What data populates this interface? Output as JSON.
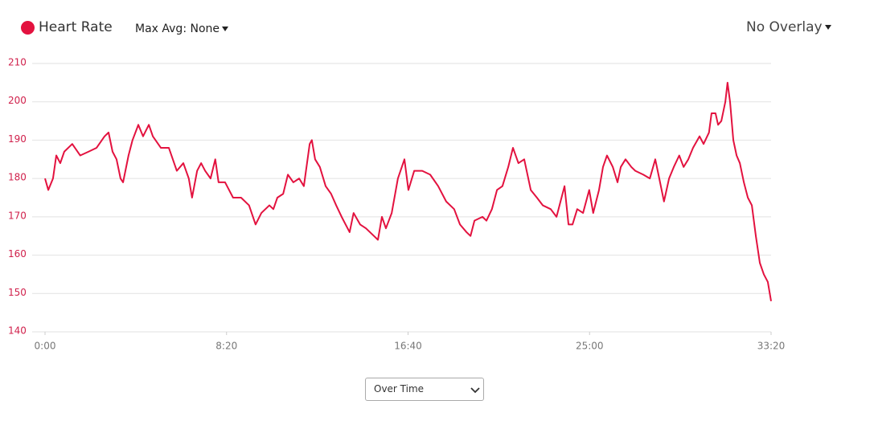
{
  "controls": {
    "max_avg": "Max Avg: None",
    "overlay": "No Overlay",
    "view": "Over Time"
  },
  "chart_data": {
    "type": "line",
    "xlim": [
      0,
      2000
    ],
    "ylim": [
      140,
      210
    ],
    "xticks": [
      {
        "value": 0,
        "label": "0:00"
      },
      {
        "value": 500,
        "label": "8:20"
      },
      {
        "value": 1000,
        "label": "16:40"
      },
      {
        "value": 1500,
        "label": "25:00"
      },
      {
        "value": 2000,
        "label": "33:20"
      }
    ],
    "yticks": [
      140,
      150,
      160,
      170,
      180,
      190,
      200,
      210
    ],
    "grid": true,
    "x": [
      0,
      9,
      22,
      31,
      42,
      53,
      75,
      97,
      120,
      142,
      164,
      175,
      186,
      197,
      208,
      215,
      230,
      241,
      257,
      270,
      286,
      297,
      319,
      341,
      363,
      381,
      396,
      405,
      419,
      430,
      441,
      456,
      469,
      478,
      496,
      518,
      540,
      562,
      580,
      596,
      618,
      629,
      640,
      656,
      669,
      684,
      700,
      713,
      729,
      735,
      744,
      757,
      773,
      788,
      802,
      817,
      828,
      839,
      850,
      868,
      884,
      906,
      917,
      928,
      939,
      955,
      972,
      990,
      1001,
      1017,
      1039,
      1061,
      1083,
      1105,
      1127,
      1143,
      1161,
      1172,
      1183,
      1205,
      1216,
      1231,
      1245,
      1260,
      1276,
      1289,
      1304,
      1320,
      1338,
      1355,
      1371,
      1393,
      1409,
      1420,
      1431,
      1442,
      1453,
      1466,
      1482,
      1499,
      1510,
      1526,
      1537,
      1548,
      1564,
      1577,
      1586,
      1599,
      1615,
      1626,
      1648,
      1666,
      1681,
      1692,
      1705,
      1719,
      1732,
      1747,
      1759,
      1772,
      1785,
      1803,
      1814,
      1829,
      1836,
      1847,
      1854,
      1863,
      1874,
      1880,
      1887,
      1896,
      1905,
      1914,
      1925,
      1936,
      1947,
      1958,
      1969,
      1980,
      1991,
      2000
    ],
    "series": [
      {
        "name": "Heart Rate",
        "color": "#e3123f",
        "values": [
          180,
          177,
          180,
          186,
          184,
          187,
          189,
          186,
          187,
          188,
          191,
          192,
          187,
          185,
          180,
          179,
          186,
          190,
          194,
          191,
          194,
          191,
          188,
          188,
          182,
          184,
          180,
          175,
          182,
          184,
          182,
          180,
          185,
          179,
          179,
          175,
          175,
          173,
          168,
          171,
          173,
          172,
          175,
          176,
          181,
          179,
          180,
          178,
          189,
          190,
          185,
          183,
          178,
          176,
          173,
          170,
          168,
          166,
          171,
          168,
          167,
          165,
          164,
          170,
          167,
          171,
          180,
          185,
          177,
          182,
          182,
          181,
          178,
          174,
          172,
          168,
          166,
          165,
          169,
          170,
          169,
          172,
          177,
          178,
          183,
          188,
          184,
          185,
          177,
          175,
          173,
          172,
          170,
          174,
          178,
          168,
          168,
          172,
          171,
          177,
          171,
          177,
          183,
          186,
          183,
          179,
          183,
          185,
          183,
          182,
          181,
          180,
          185,
          180,
          174,
          180,
          183,
          186,
          183,
          185,
          188,
          191,
          189,
          192,
          197,
          197,
          194,
          195,
          200,
          205,
          200,
          190,
          186,
          184,
          179,
          175,
          173,
          165,
          158,
          155,
          153,
          148
        ]
      }
    ]
  }
}
